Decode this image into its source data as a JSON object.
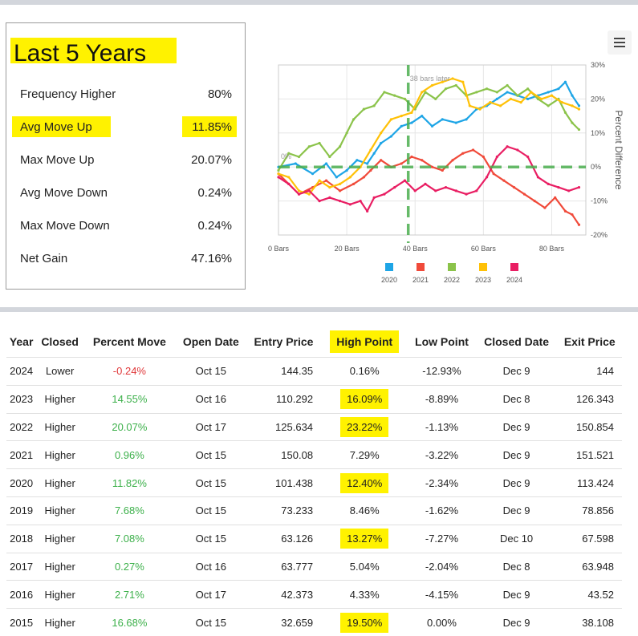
{
  "stats": {
    "title": "Last 5 Years",
    "rows": [
      {
        "label": "Frequency Higher",
        "value": "80%"
      },
      {
        "label": "Avg Move Up",
        "value": "11.85%"
      },
      {
        "label": "Max Move Up",
        "value": "20.07%"
      },
      {
        "label": "Avg Move Down",
        "value": "0.24%"
      },
      {
        "label": "Max Move Down",
        "value": "0.24%"
      },
      {
        "label": "Net Gain",
        "value": "47.16%"
      }
    ]
  },
  "highlight_color": "#fff200",
  "menu_icon": "hamburger-menu-icon",
  "chart_data": {
    "type": "line",
    "ylabel": "Percent Difference",
    "xlim": [
      0,
      90
    ],
    "ylim": [
      -20,
      30
    ],
    "x_ticks": [
      "0 Bars",
      "20 Bars",
      "40 Bars",
      "60 Bars",
      "80 Bars"
    ],
    "y_ticks": [
      "30%",
      "20%",
      "10%",
      "0%",
      "-10%",
      "-20%"
    ],
    "annotation": "38 bars later",
    "marker_x": 38,
    "zero_label": "0%",
    "legend_position": "bottom",
    "series": [
      {
        "name": "2020",
        "color": "#1ea5e6",
        "values": [
          [
            0,
            0
          ],
          [
            5,
            1
          ],
          [
            10,
            -2
          ],
          [
            14,
            1
          ],
          [
            17,
            -3
          ],
          [
            20,
            -1
          ],
          [
            23,
            2
          ],
          [
            26,
            1
          ],
          [
            28,
            4
          ],
          [
            30,
            7
          ],
          [
            33,
            9
          ],
          [
            36,
            12
          ],
          [
            39,
            13
          ],
          [
            42,
            15
          ],
          [
            45,
            12
          ],
          [
            48,
            14
          ],
          [
            52,
            13
          ],
          [
            55,
            14
          ],
          [
            58,
            17
          ],
          [
            61,
            18
          ],
          [
            64,
            20
          ],
          [
            67,
            22
          ],
          [
            70,
            21
          ],
          [
            73,
            20
          ],
          [
            76,
            21
          ],
          [
            79,
            22
          ],
          [
            82,
            23
          ],
          [
            84,
            25
          ],
          [
            86,
            21
          ],
          [
            88,
            18
          ]
        ]
      },
      {
        "name": "2021",
        "color": "#f04a3a",
        "values": [
          [
            0,
            -2
          ],
          [
            3,
            -5
          ],
          [
            6,
            -8
          ],
          [
            10,
            -6
          ],
          [
            14,
            -4
          ],
          [
            18,
            -7
          ],
          [
            22,
            -5
          ],
          [
            25,
            -3
          ],
          [
            27,
            -1
          ],
          [
            30,
            2
          ],
          [
            33,
            0
          ],
          [
            36,
            1
          ],
          [
            39,
            3
          ],
          [
            42,
            2
          ],
          [
            45,
            0
          ],
          [
            48,
            -1
          ],
          [
            51,
            2
          ],
          [
            54,
            4
          ],
          [
            57,
            5
          ],
          [
            60,
            3
          ],
          [
            63,
            -2
          ],
          [
            66,
            -4
          ],
          [
            69,
            -6
          ],
          [
            72,
            -8
          ],
          [
            75,
            -10
          ],
          [
            78,
            -12
          ],
          [
            81,
            -9
          ],
          [
            84,
            -13
          ],
          [
            86,
            -14
          ],
          [
            88,
            -17
          ]
        ]
      },
      {
        "name": "2022",
        "color": "#8bc34a",
        "values": [
          [
            0,
            -1
          ],
          [
            3,
            4
          ],
          [
            6,
            3
          ],
          [
            9,
            6
          ],
          [
            12,
            7
          ],
          [
            15,
            3
          ],
          [
            18,
            6
          ],
          [
            20,
            10
          ],
          [
            22,
            14
          ],
          [
            25,
            17
          ],
          [
            28,
            18
          ],
          [
            31,
            22
          ],
          [
            34,
            21
          ],
          [
            37,
            20
          ],
          [
            40,
            17
          ],
          [
            43,
            22
          ],
          [
            46,
            20
          ],
          [
            49,
            23
          ],
          [
            52,
            24
          ],
          [
            55,
            21
          ],
          [
            58,
            22
          ],
          [
            61,
            23
          ],
          [
            64,
            22
          ],
          [
            67,
            24
          ],
          [
            70,
            21
          ],
          [
            73,
            23
          ],
          [
            76,
            20
          ],
          [
            79,
            18
          ],
          [
            82,
            20
          ],
          [
            84,
            16
          ],
          [
            86,
            13
          ],
          [
            88,
            11
          ]
        ]
      },
      {
        "name": "2023",
        "color": "#ffc107",
        "values": [
          [
            0,
            -2
          ],
          [
            3,
            -3
          ],
          [
            6,
            -7
          ],
          [
            9,
            -8
          ],
          [
            12,
            -4
          ],
          [
            15,
            -6
          ],
          [
            18,
            -5
          ],
          [
            21,
            -3
          ],
          [
            24,
            0
          ],
          [
            27,
            5
          ],
          [
            30,
            10
          ],
          [
            33,
            14
          ],
          [
            36,
            15
          ],
          [
            39,
            16
          ],
          [
            42,
            22
          ],
          [
            45,
            24
          ],
          [
            48,
            25
          ],
          [
            51,
            26
          ],
          [
            54,
            25
          ],
          [
            56,
            18
          ],
          [
            59,
            17
          ],
          [
            62,
            19
          ],
          [
            65,
            18
          ],
          [
            68,
            20
          ],
          [
            71,
            19
          ],
          [
            74,
            22
          ],
          [
            77,
            20
          ],
          [
            80,
            21
          ],
          [
            83,
            19
          ],
          [
            86,
            18
          ],
          [
            88,
            17
          ]
        ]
      },
      {
        "name": "2024",
        "color": "#e91e63",
        "values": [
          [
            0,
            -3
          ],
          [
            3,
            -5
          ],
          [
            6,
            -8
          ],
          [
            9,
            -7
          ],
          [
            12,
            -10
          ],
          [
            15,
            -9
          ],
          [
            18,
            -10
          ],
          [
            21,
            -11
          ],
          [
            24,
            -10
          ],
          [
            26,
            -13
          ],
          [
            28,
            -9
          ],
          [
            31,
            -8
          ],
          [
            34,
            -6
          ],
          [
            37,
            -4
          ],
          [
            40,
            -7
          ],
          [
            43,
            -5
          ],
          [
            46,
            -7
          ],
          [
            49,
            -6
          ],
          [
            52,
            -7
          ],
          [
            55,
            -8
          ],
          [
            58,
            -7
          ],
          [
            61,
            -3
          ],
          [
            64,
            3
          ],
          [
            67,
            6
          ],
          [
            70,
            5
          ],
          [
            73,
            3
          ],
          [
            76,
            -3
          ],
          [
            79,
            -5
          ],
          [
            82,
            -6
          ],
          [
            85,
            -7
          ],
          [
            88,
            -6
          ]
        ]
      }
    ]
  },
  "table": {
    "headers": [
      "Year",
      "Closed",
      "Percent Move",
      "Open Date",
      "Entry Price",
      "High Point",
      "Low Point",
      "Closed Date",
      "Exit Price"
    ],
    "rows": [
      {
        "year": "2024",
        "closed": "Lower",
        "move": "-0.24%",
        "open": "Oct 15",
        "entry": "144.35",
        "high": "0.16%",
        "low": "-12.93%",
        "close_date": "Dec 9",
        "exit": "144",
        "hl": false
      },
      {
        "year": "2023",
        "closed": "Higher",
        "move": "14.55%",
        "open": "Oct 16",
        "entry": "110.292",
        "high": "16.09%",
        "low": "-8.89%",
        "close_date": "Dec 8",
        "exit": "126.343",
        "hl": true
      },
      {
        "year": "2022",
        "closed": "Higher",
        "move": "20.07%",
        "open": "Oct 17",
        "entry": "125.634",
        "high": "23.22%",
        "low": "-1.13%",
        "close_date": "Dec 9",
        "exit": "150.854",
        "hl": true
      },
      {
        "year": "2021",
        "closed": "Higher",
        "move": "0.96%",
        "open": "Oct 15",
        "entry": "150.08",
        "high": "7.29%",
        "low": "-3.22%",
        "close_date": "Dec 9",
        "exit": "151.521",
        "hl": false
      },
      {
        "year": "2020",
        "closed": "Higher",
        "move": "11.82%",
        "open": "Oct 15",
        "entry": "101.438",
        "high": "12.40%",
        "low": "-2.34%",
        "close_date": "Dec 9",
        "exit": "113.424",
        "hl": true
      },
      {
        "year": "2019",
        "closed": "Higher",
        "move": "7.68%",
        "open": "Oct 15",
        "entry": "73.233",
        "high": "8.46%",
        "low": "-1.62%",
        "close_date": "Dec 9",
        "exit": "78.856",
        "hl": false
      },
      {
        "year": "2018",
        "closed": "Higher",
        "move": "7.08%",
        "open": "Oct 15",
        "entry": "63.126",
        "high": "13.27%",
        "low": "-7.27%",
        "close_date": "Dec 10",
        "exit": "67.598",
        "hl": true
      },
      {
        "year": "2017",
        "closed": "Higher",
        "move": "0.27%",
        "open": "Oct 16",
        "entry": "63.777",
        "high": "5.04%",
        "low": "-2.04%",
        "close_date": "Dec 8",
        "exit": "63.948",
        "hl": false
      },
      {
        "year": "2016",
        "closed": "Higher",
        "move": "2.71%",
        "open": "Oct 17",
        "entry": "42.373",
        "high": "4.33%",
        "low": "-4.15%",
        "close_date": "Dec 9",
        "exit": "43.52",
        "hl": false
      },
      {
        "year": "2015",
        "closed": "Higher",
        "move": "16.68%",
        "open": "Oct 15",
        "entry": "32.659",
        "high": "19.50%",
        "low": "0.00%",
        "close_date": "Dec 9",
        "exit": "38.108",
        "hl": true
      }
    ]
  }
}
